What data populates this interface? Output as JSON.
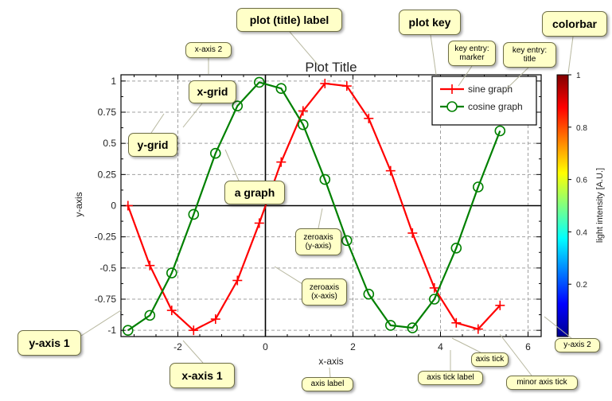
{
  "chart_data": {
    "type": "line",
    "title": "Plot Title",
    "xlabel": "x-axis",
    "ylabel": "y-axis",
    "xlim": [
      -3.3,
      6.3
    ],
    "ylim": [
      -1.05,
      1.05
    ],
    "xticks": [
      -2,
      0,
      2,
      4,
      6
    ],
    "yticks": [
      1,
      0.75,
      0.5,
      0.25,
      0,
      -0.25,
      -0.5,
      -0.75,
      -1
    ],
    "xtick_labels": [
      "-2",
      "0",
      "2",
      "4",
      "6"
    ],
    "ytick_labels": [
      "1",
      "0.75",
      "0.5",
      "0.25",
      "0",
      "-0.25",
      "-0.5",
      "-0.75",
      "-1"
    ],
    "grid": true,
    "legend_position": "top-right",
    "series": [
      {
        "name": "sine graph",
        "color": "#ff0000",
        "marker": "plus",
        "x": [
          -3.14,
          -2.64,
          -2.14,
          -1.64,
          -1.14,
          -0.64,
          -0.14,
          0.36,
          0.86,
          1.36,
          1.86,
          2.36,
          2.86,
          3.36,
          3.86,
          4.36,
          4.86,
          5.36
        ],
        "y": [
          0,
          -0.48,
          -0.84,
          -1.0,
          -0.91,
          -0.6,
          -0.14,
          0.35,
          0.76,
          0.98,
          0.96,
          0.7,
          0.28,
          -0.22,
          -0.66,
          -0.94,
          -0.99,
          -0.8
        ]
      },
      {
        "name": "cosine graph",
        "color": "#008000",
        "marker": "circle",
        "x": [
          -3.14,
          -2.64,
          -2.14,
          -1.64,
          -1.14,
          -0.64,
          -0.14,
          0.36,
          0.86,
          1.36,
          1.86,
          2.36,
          2.86,
          3.36,
          3.86,
          4.36,
          4.86,
          5.36
        ],
        "y": [
          -1.0,
          -0.88,
          -0.54,
          -0.07,
          0.42,
          0.8,
          0.99,
          0.94,
          0.65,
          0.21,
          -0.28,
          -0.71,
          -0.96,
          -0.98,
          -0.75,
          -0.34,
          0.15,
          0.6
        ]
      }
    ],
    "colorbar": {
      "label": "light intensity [A.U.]",
      "ticks": [
        "1",
        "0.8",
        "0.6",
        "0.4",
        "0.2"
      ],
      "tick_values": [
        1,
        0.8,
        0.6,
        0.4,
        0.2
      ],
      "range": [
        0,
        1
      ]
    }
  },
  "annotations": {
    "plot_title_label": "plot (title) label",
    "plot_key": "plot key",
    "colorbar": "colorbar",
    "x_axis_2": "x-axis 2",
    "key_entry_marker": "key entry:\nmarker",
    "key_entry_title": "key entry:\ntitle",
    "x_grid": "x-grid",
    "y_grid": "y-grid",
    "a_graph": "a graph",
    "zeroaxis_y": "zeroaxis\n(y-axis)",
    "zeroaxis_x": "zeroaxis\n(x-axis)",
    "y_axis_1": "y-axis 1",
    "x_axis_1": "x-axis 1",
    "axis_label": "axis label",
    "axis_tick_label": "axis tick label",
    "axis_tick": "axis tick",
    "minor_axis_tick": "minor axis tick",
    "y_axis_2": "y-axis 2"
  }
}
